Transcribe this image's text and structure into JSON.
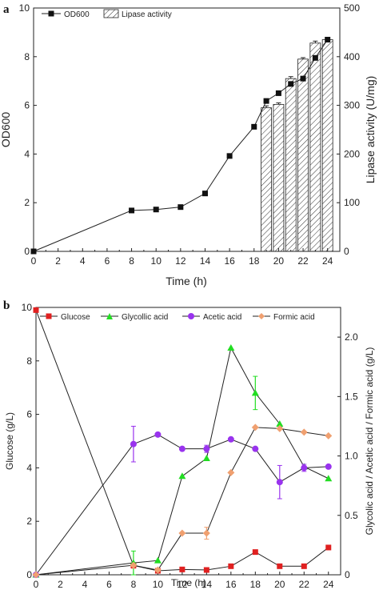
{
  "chart_data": [
    {
      "panel_label": "a",
      "type": "bar+line",
      "xlabel": "Time (h)",
      "xlim": [
        0,
        25
      ],
      "x_ticks": [
        "0",
        "2",
        "4",
        "6",
        "8",
        "10",
        "12",
        "14",
        "16",
        "18",
        "20",
        "22",
        "24"
      ],
      "ylabel_left": "OD600",
      "ylim_left": [
        0,
        10
      ],
      "y_ticks_left": [
        "0",
        "2",
        "4",
        "6",
        "8",
        "10"
      ],
      "ylabel_right": "Lipase activity (U/mg)",
      "ylim_right": [
        0,
        500
      ],
      "y_ticks_right": [
        "0",
        "100",
        "200",
        "300",
        "400",
        "500"
      ],
      "legend": {
        "placement": "top-left",
        "entries": [
          "OD600",
          "Lipase activity"
        ]
      },
      "series": [
        {
          "name": "OD600",
          "type": "line",
          "axis": "left",
          "x": [
            0,
            8,
            10,
            12,
            14,
            16,
            18,
            19,
            20,
            21,
            22,
            23,
            24
          ],
          "y": [
            0,
            1.68,
            1.72,
            1.82,
            2.38,
            3.92,
            5.12,
            6.18,
            6.5,
            6.88,
            7.1,
            7.95,
            8.7
          ]
        },
        {
          "name": "Lipase activity",
          "type": "bar",
          "axis": "right",
          "pattern": "hatched",
          "x": [
            19,
            20,
            21,
            22,
            23,
            24
          ],
          "y": [
            295,
            302,
            355,
            395,
            428,
            435
          ],
          "error": [
            4,
            3,
            4,
            3,
            4,
            3
          ]
        }
      ]
    },
    {
      "panel_label": "b",
      "type": "line",
      "xlabel": "Time (h)",
      "xlim": [
        0,
        25
      ],
      "x_ticks": [
        "0",
        "2",
        "4",
        "6",
        "8",
        "10",
        "12",
        "14",
        "16",
        "18",
        "20",
        "22",
        "24"
      ],
      "ylabel_left": "Glucose (g/L)",
      "ylim_left": [
        0,
        10
      ],
      "y_ticks_left": [
        "0",
        "2",
        "4",
        "6",
        "8",
        "10"
      ],
      "ylabel_right": "Glycolic acid / Acetic acid / Formic acid (g/L)",
      "ylim_right": [
        0,
        2.25
      ],
      "y_ticks_right": [
        "0",
        "0.5",
        "1.0",
        "1.5",
        "2.0"
      ],
      "legend": {
        "placement": "top",
        "entries": [
          "Glucose",
          "Glycollic acid",
          "Acetic acid",
          "Formic acid"
        ]
      },
      "series": [
        {
          "name": "Glucose",
          "axis": "left",
          "color": "#e02020",
          "marker": "square",
          "x": [
            0,
            8,
            10,
            12,
            14,
            16,
            18,
            20,
            22,
            24
          ],
          "y": [
            9.9,
            0.35,
            0.15,
            0.2,
            0.18,
            0.32,
            0.85,
            0.32,
            0.32,
            1.02
          ],
          "error": [
            0,
            0.1,
            0,
            0,
            0,
            0,
            0,
            0,
            0,
            0
          ]
        },
        {
          "name": "Glycollic acid",
          "axis": "right",
          "color": "#22dd22",
          "marker": "triangle",
          "x": [
            0,
            8,
            10,
            12,
            14,
            16,
            18,
            20,
            22,
            24
          ],
          "y": [
            0,
            0.1,
            0.12,
            0.83,
            0.98,
            1.91,
            1.53,
            1.27,
            0.91,
            0.81
          ],
          "error": [
            0,
            0.1,
            0,
            0,
            0,
            0,
            0.14,
            0,
            0,
            0
          ]
        },
        {
          "name": "Acetic acid",
          "axis": "right",
          "color": "#9933ee",
          "marker": "circle",
          "x": [
            0,
            8,
            10,
            12,
            14,
            16,
            18,
            20,
            22,
            24
          ],
          "y": [
            0,
            1.1,
            1.18,
            1.06,
            1.06,
            1.14,
            1.06,
            0.78,
            0.9,
            0.91
          ],
          "error": [
            0,
            0.15,
            0,
            0,
            0.03,
            0,
            0,
            0.14,
            0.03,
            0
          ]
        },
        {
          "name": "Formic acid",
          "axis": "right",
          "color": "#f0a070",
          "marker": "diamond",
          "x": [
            0,
            8,
            10,
            12,
            14,
            16,
            18,
            20,
            22,
            24
          ],
          "y": [
            0,
            0.08,
            0.04,
            0.35,
            0.35,
            0.86,
            1.24,
            1.23,
            1.2,
            1.17
          ],
          "error": [
            0,
            0,
            0,
            0,
            0.05,
            0,
            0,
            0,
            0,
            0
          ]
        }
      ]
    }
  ]
}
